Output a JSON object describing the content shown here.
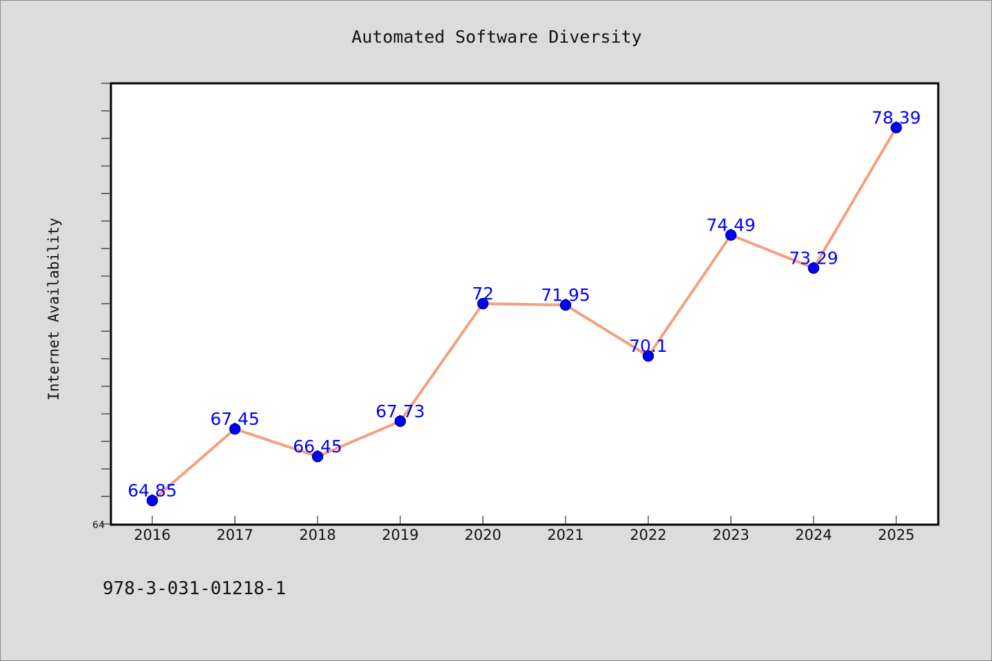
{
  "chart_data": {
    "type": "line",
    "title": "Automated Software Diversity",
    "xlabel": "",
    "ylabel": "Internet Availability",
    "x": [
      "2016",
      "2017",
      "2018",
      "2019",
      "2020",
      "2021",
      "2022",
      "2023",
      "2024",
      "2025"
    ],
    "series": [
      {
        "values": [
          64.85,
          67.45,
          66.45,
          67.73,
          72,
          71.95,
          70.1,
          74.49,
          73.29,
          78.39
        ],
        "data_labels": [
          "64.85",
          "67.45",
          "66.45",
          "67.73",
          "72",
          "71.95",
          "70.1",
          "74.49",
          "73.29",
          "78.39"
        ]
      }
    ],
    "ylim": [
      64,
      80
    ],
    "y_tick_label": "64",
    "grid": false,
    "legend": "none",
    "colors": {
      "line": "#f4a07c",
      "marker": "#0000ff",
      "marker_edge": "#00008b",
      "data_label": "#0000ff",
      "plot_background": "#ffffff",
      "page_background": "#dcdcdc"
    }
  },
  "annotation": "978-3-031-01218-1"
}
